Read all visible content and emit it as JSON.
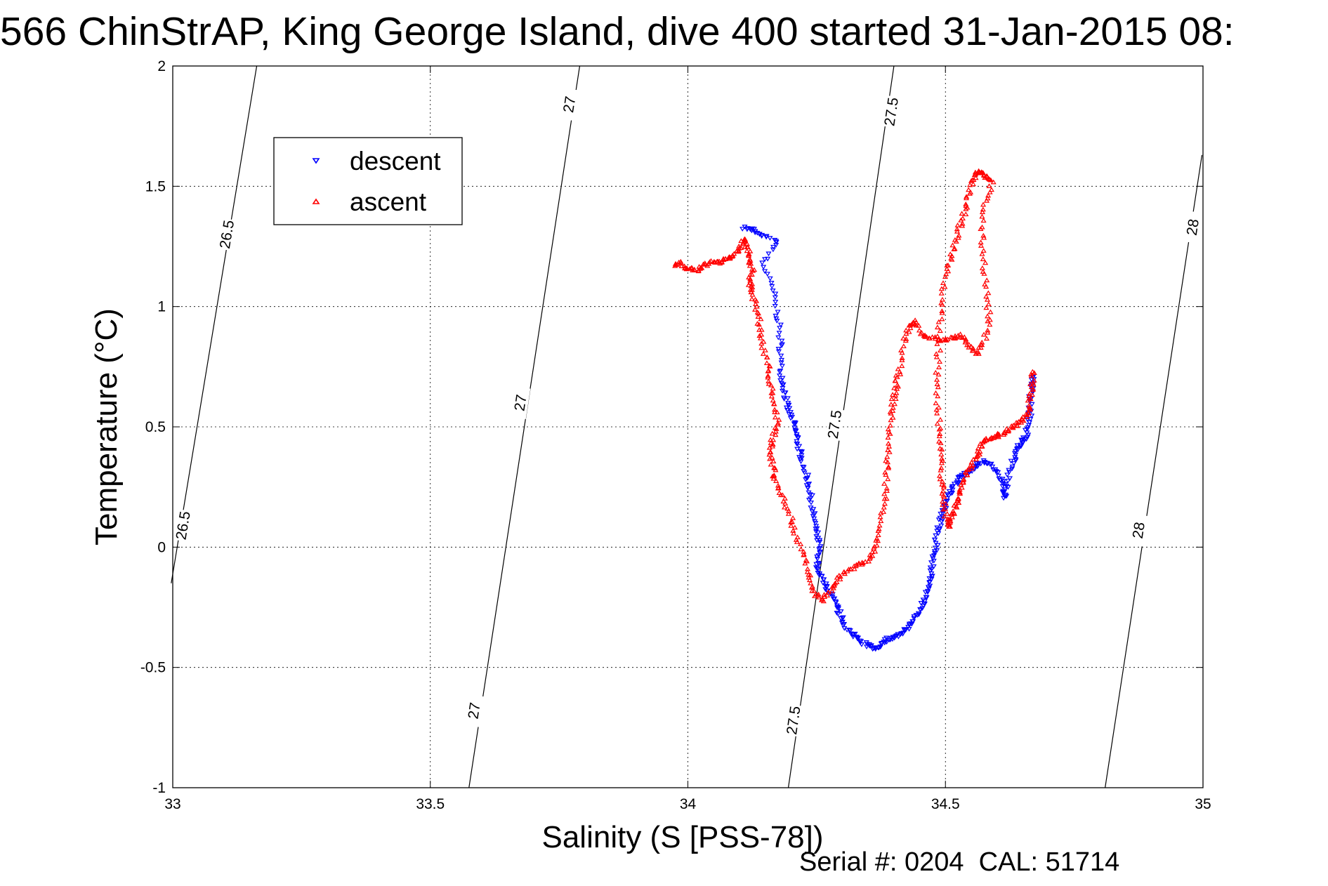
{
  "chart_data": {
    "type": "scatter",
    "title": "566 ChinStrAP, King George Island, dive 400 started 31-Jan-2015 08:",
    "xlabel": "Salinity (S [PSS-78])",
    "ylabel": "Temperature (°C)",
    "footer": "Serial #: 0204  CAL: 51714",
    "xlim": [
      33,
      35
    ],
    "ylim": [
      -1,
      2
    ],
    "xticks": [
      33,
      33.5,
      34,
      34.5,
      35
    ],
    "xtick_labels": [
      "33",
      "33.5",
      "34",
      "34.5",
      "35"
    ],
    "yticks": [
      -1,
      -0.5,
      0,
      0.5,
      1,
      1.5,
      2
    ],
    "ytick_labels": [
      "-1",
      "-0.5",
      "0",
      "0.5",
      "1",
      "1.5",
      "2"
    ],
    "grid": true,
    "legend_position": "top-left",
    "colors": {
      "descent": "#0000ff",
      "ascent": "#ff0000",
      "contour": "#000000"
    },
    "legend": [
      "descent",
      "ascent"
    ],
    "density_contours": [
      {
        "label": "26.5",
        "points": [
          [
            33.163,
            2
          ],
          [
            32.997,
            -0.15
          ]
        ],
        "label_positions": [
          [
            33.105,
            1.3
          ],
          [
            33.02,
            0.09
          ]
        ]
      },
      {
        "label": "27",
        "points": [
          [
            33.79,
            2
          ],
          [
            33.575,
            -1
          ]
        ],
        "label_positions": [
          [
            33.77,
            1.84
          ],
          [
            33.675,
            0.6
          ],
          [
            33.585,
            -0.68
          ]
        ]
      },
      {
        "label": "27.5",
        "points": [
          [
            34.4,
            2
          ],
          [
            34.195,
            -1
          ]
        ],
        "label_positions": [
          [
            34.395,
            1.81
          ],
          [
            34.285,
            0.51
          ],
          [
            34.205,
            -0.72
          ]
        ]
      },
      {
        "label": "28",
        "points": [
          [
            34.998,
            1.63
          ],
          [
            34.81,
            -1
          ]
        ],
        "label_positions": [
          [
            34.98,
            1.33
          ],
          [
            34.875,
            0.07
          ]
        ]
      }
    ],
    "series": [
      {
        "name": "descent",
        "marker": "triangle-down",
        "path": [
          [
            34.11,
            1.33
          ],
          [
            34.125,
            1.32
          ],
          [
            34.14,
            1.3
          ],
          [
            34.175,
            1.27
          ],
          [
            34.145,
            1.18
          ],
          [
            34.165,
            1.07
          ],
          [
            34.175,
            0.95
          ],
          [
            34.18,
            0.85
          ],
          [
            34.18,
            0.75
          ],
          [
            34.185,
            0.68
          ],
          [
            34.19,
            0.62
          ],
          [
            34.195,
            0.57
          ],
          [
            34.205,
            0.52
          ],
          [
            34.21,
            0.47
          ],
          [
            34.215,
            0.42
          ],
          [
            34.22,
            0.37
          ],
          [
            34.23,
            0.3
          ],
          [
            34.235,
            0.25
          ],
          [
            34.24,
            0.18
          ],
          [
            34.245,
            0.12
          ],
          [
            34.25,
            0.06
          ],
          [
            34.255,
            0.0
          ],
          [
            34.25,
            -0.06
          ],
          [
            34.255,
            -0.11
          ],
          [
            34.265,
            -0.15
          ],
          [
            34.275,
            -0.19
          ],
          [
            34.285,
            -0.23
          ],
          [
            34.295,
            -0.28
          ],
          [
            34.305,
            -0.33
          ],
          [
            34.32,
            -0.36
          ],
          [
            34.335,
            -0.39
          ],
          [
            34.35,
            -0.41
          ],
          [
            34.365,
            -0.42
          ],
          [
            34.375,
            -0.4
          ],
          [
            34.39,
            -0.38
          ],
          [
            34.405,
            -0.37
          ],
          [
            34.42,
            -0.35
          ],
          [
            34.435,
            -0.32
          ],
          [
            34.445,
            -0.28
          ],
          [
            34.455,
            -0.24
          ],
          [
            34.462,
            -0.2
          ],
          [
            34.468,
            -0.15
          ],
          [
            34.473,
            -0.1
          ],
          [
            34.478,
            -0.04
          ],
          [
            34.482,
            0.02
          ],
          [
            34.487,
            0.08
          ],
          [
            34.492,
            0.13
          ],
          [
            34.498,
            0.17
          ],
          [
            34.505,
            0.21
          ],
          [
            34.515,
            0.25
          ],
          [
            34.525,
            0.28
          ],
          [
            34.535,
            0.3
          ],
          [
            34.548,
            0.32
          ],
          [
            34.56,
            0.34
          ],
          [
            34.575,
            0.36
          ],
          [
            34.59,
            0.34
          ],
          [
            34.605,
            0.3
          ],
          [
            34.615,
            0.25
          ],
          [
            34.615,
            0.2
          ],
          [
            34.62,
            0.28
          ],
          [
            34.63,
            0.35
          ],
          [
            34.64,
            0.4
          ],
          [
            34.645,
            0.43
          ],
          [
            34.655,
            0.45
          ],
          [
            34.66,
            0.5
          ],
          [
            34.665,
            0.56
          ],
          [
            34.665,
            0.62
          ],
          [
            34.668,
            0.68
          ],
          [
            34.67,
            0.71
          ]
        ]
      },
      {
        "name": "ascent",
        "marker": "triangle-up",
        "path": [
          [
            34.67,
            0.73
          ],
          [
            34.668,
            0.67
          ],
          [
            34.665,
            0.62
          ],
          [
            34.66,
            0.56
          ],
          [
            34.65,
            0.53
          ],
          [
            34.64,
            0.51
          ],
          [
            34.625,
            0.49
          ],
          [
            34.61,
            0.47
          ],
          [
            34.595,
            0.46
          ],
          [
            34.58,
            0.45
          ],
          [
            34.57,
            0.42
          ],
          [
            34.56,
            0.38
          ],
          [
            34.55,
            0.34
          ],
          [
            34.54,
            0.3
          ],
          [
            34.532,
            0.25
          ],
          [
            34.525,
            0.2
          ],
          [
            34.518,
            0.16
          ],
          [
            34.51,
            0.12
          ],
          [
            34.505,
            0.08
          ],
          [
            34.5,
            0.15
          ],
          [
            34.495,
            0.22
          ],
          [
            34.492,
            0.3
          ],
          [
            34.49,
            0.4
          ],
          [
            34.487,
            0.5
          ],
          [
            34.485,
            0.62
          ],
          [
            34.485,
            0.75
          ],
          [
            34.487,
            0.88
          ],
          [
            34.492,
            1.0
          ],
          [
            34.5,
            1.12
          ],
          [
            34.51,
            1.2
          ],
          [
            34.52,
            1.28
          ],
          [
            34.53,
            1.35
          ],
          [
            34.54,
            1.42
          ],
          [
            34.55,
            1.5
          ],
          [
            34.56,
            1.55
          ],
          [
            34.57,
            1.56
          ],
          [
            34.58,
            1.54
          ],
          [
            34.59,
            1.52
          ],
          [
            34.575,
            1.42
          ],
          [
            34.57,
            1.3
          ],
          [
            34.575,
            1.18
          ],
          [
            34.58,
            1.06
          ],
          [
            34.585,
            0.95
          ],
          [
            34.575,
            0.85
          ],
          [
            34.56,
            0.8
          ],
          [
            34.545,
            0.84
          ],
          [
            34.53,
            0.88
          ],
          [
            34.515,
            0.87
          ],
          [
            34.495,
            0.86
          ],
          [
            34.475,
            0.87
          ],
          [
            34.455,
            0.88
          ],
          [
            34.44,
            0.94
          ],
          [
            34.43,
            0.92
          ],
          [
            34.42,
            0.85
          ],
          [
            34.41,
            0.74
          ],
          [
            34.405,
            0.68
          ],
          [
            34.4,
            0.62
          ],
          [
            34.395,
            0.55
          ],
          [
            34.39,
            0.45
          ],
          [
            34.387,
            0.35
          ],
          [
            34.385,
            0.25
          ],
          [
            34.38,
            0.15
          ],
          [
            34.37,
            0.05
          ],
          [
            34.36,
            -0.02
          ],
          [
            34.345,
            -0.06
          ],
          [
            34.325,
            -0.08
          ],
          [
            34.305,
            -0.1
          ],
          [
            34.29,
            -0.14
          ],
          [
            34.275,
            -0.19
          ],
          [
            34.26,
            -0.22
          ],
          [
            34.245,
            -0.19
          ],
          [
            34.235,
            -0.12
          ],
          [
            34.225,
            -0.04
          ],
          [
            34.21,
            0.04
          ],
          [
            34.2,
            0.12
          ],
          [
            34.185,
            0.2
          ],
          [
            34.17,
            0.27
          ],
          [
            34.165,
            0.33
          ],
          [
            34.16,
            0.4
          ],
          [
            34.165,
            0.45
          ],
          [
            34.175,
            0.52
          ],
          [
            34.165,
            0.6
          ],
          [
            34.16,
            0.68
          ],
          [
            34.155,
            0.76
          ],
          [
            34.145,
            0.84
          ],
          [
            34.14,
            0.92
          ],
          [
            34.132,
            1.0
          ],
          [
            34.125,
            1.06
          ],
          [
            34.12,
            1.1
          ],
          [
            34.125,
            1.15
          ],
          [
            34.12,
            1.2
          ],
          [
            34.115,
            1.25
          ],
          [
            34.11,
            1.28
          ],
          [
            34.1,
            1.24
          ],
          [
            34.09,
            1.21
          ],
          [
            34.075,
            1.2
          ],
          [
            34.06,
            1.18
          ],
          [
            34.045,
            1.19
          ],
          [
            34.03,
            1.17
          ],
          [
            34.015,
            1.15
          ],
          [
            34.0,
            1.16
          ],
          [
            33.985,
            1.18
          ],
          [
            33.97,
            1.17
          ]
        ]
      }
    ]
  }
}
